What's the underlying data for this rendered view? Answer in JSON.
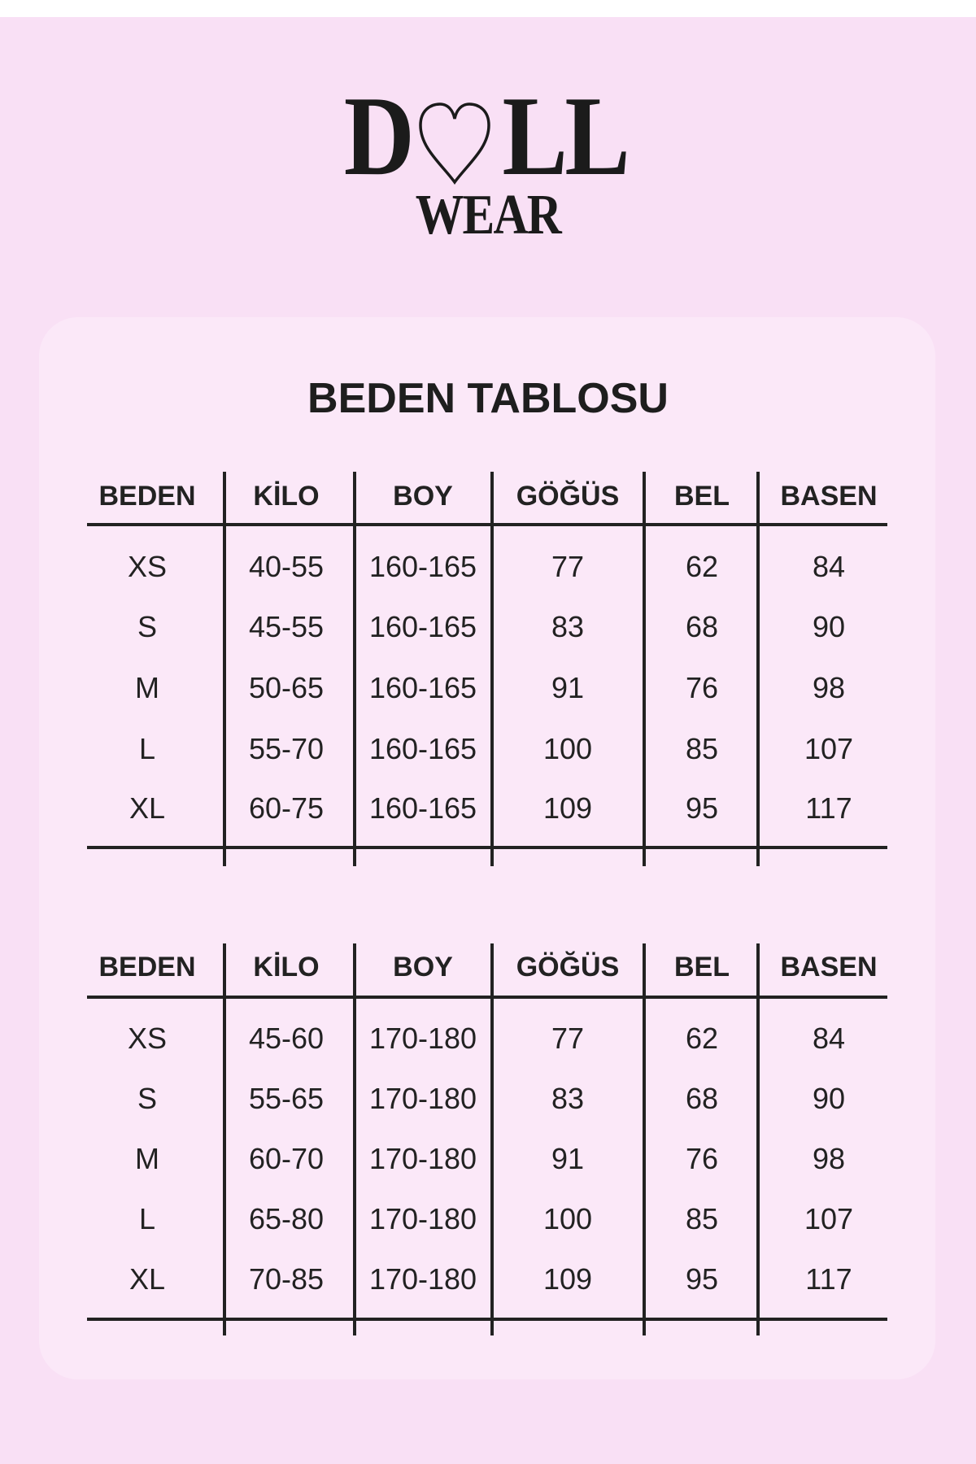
{
  "brand": {
    "logo_top": "DOLL",
    "logo_bottom": "WEAR"
  },
  "title": "BEDEN TABLOSU",
  "colors": {
    "background": "#f9e0f5",
    "card": "#fbe8f8",
    "text": "#222222"
  },
  "tables": [
    {
      "headers": [
        "BEDEN",
        "KİLO",
        "BOY",
        "GÖĞÜS",
        "BEL",
        "BASEN"
      ],
      "rows": [
        [
          "XS",
          "40-55",
          "160-165",
          "77",
          "62",
          "84"
        ],
        [
          "S",
          "45-55",
          "160-165",
          "83",
          "68",
          "90"
        ],
        [
          "M",
          "50-65",
          "160-165",
          "91",
          "76",
          "98"
        ],
        [
          "L",
          "55-70",
          "160-165",
          "100",
          "85",
          "107"
        ],
        [
          "XL",
          "60-75",
          "160-165",
          "109",
          "95",
          "117"
        ]
      ]
    },
    {
      "headers": [
        "BEDEN",
        "KİLO",
        "BOY",
        "GÖĞÜS",
        "BEL",
        "BASEN"
      ],
      "rows": [
        [
          "XS",
          "45-60",
          "170-180",
          "77",
          "62",
          "84"
        ],
        [
          "S",
          "55-65",
          "170-180",
          "83",
          "68",
          "90"
        ],
        [
          "M",
          "60-70",
          "170-180",
          "91",
          "76",
          "98"
        ],
        [
          "L",
          "65-80",
          "170-180",
          "100",
          "85",
          "107"
        ],
        [
          "XL",
          "70-85",
          "170-180",
          "109",
          "95",
          "117"
        ]
      ]
    }
  ]
}
